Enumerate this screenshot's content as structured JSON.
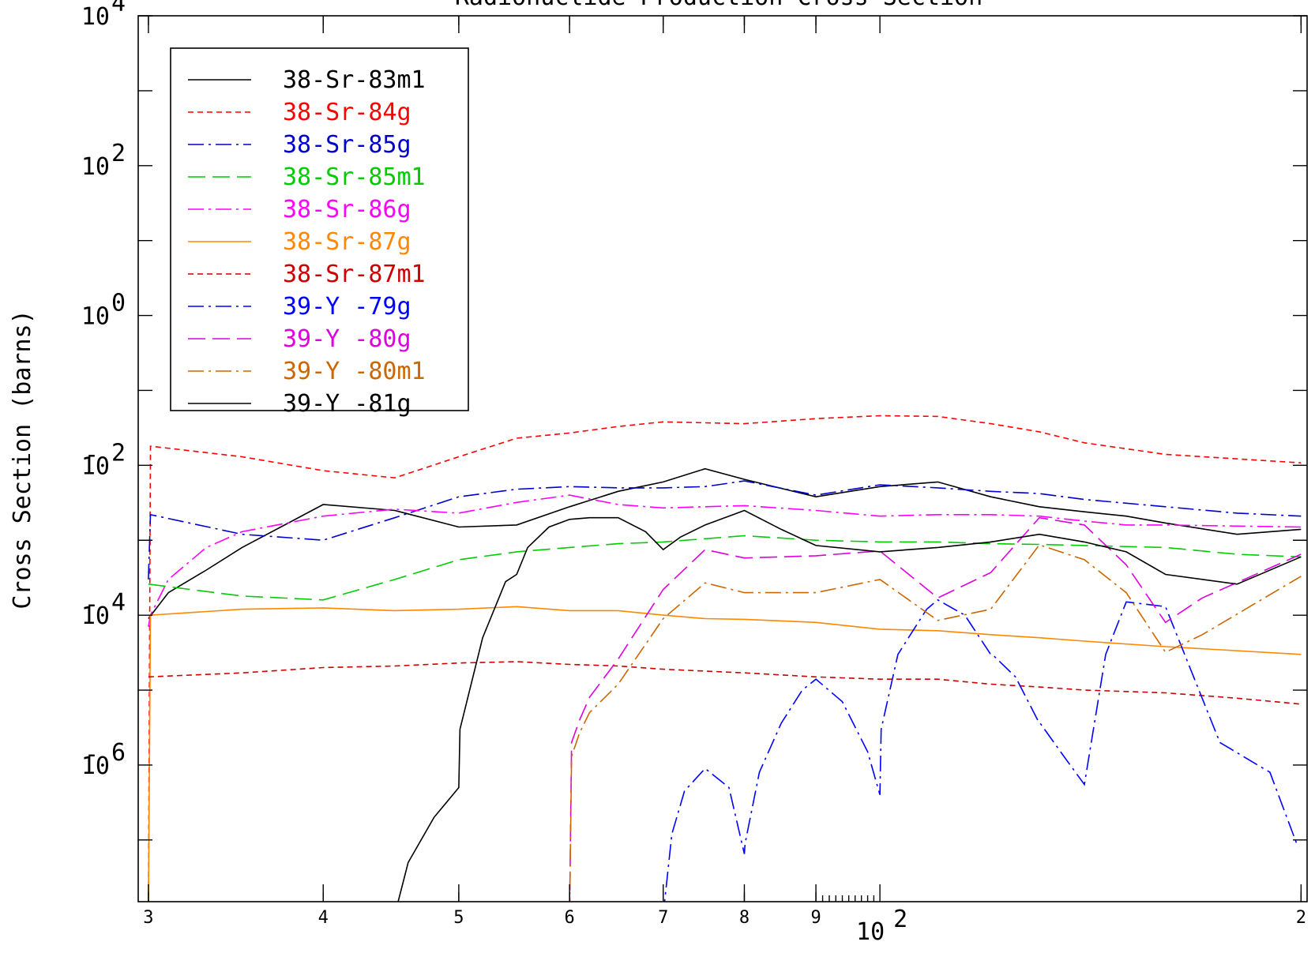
{
  "chart_data": {
    "type": "line",
    "title": "Radionuclide Production Cross Section",
    "xlabel": "",
    "ylabel": "Cross Section (barns)",
    "x_scale": "log",
    "y_scale": "log",
    "xlim": [
      29.5,
      202
    ],
    "ylim": [
      1.5e-08,
      10000
    ],
    "x_ticks": [
      {
        "value": 30,
        "label": "3"
      },
      {
        "value": 40,
        "label": "4"
      },
      {
        "value": 50,
        "label": "5"
      },
      {
        "value": 60,
        "label": "6"
      },
      {
        "value": 70,
        "label": "7"
      },
      {
        "value": 80,
        "label": "8"
      },
      {
        "value": 90,
        "label": "9"
      },
      {
        "value": 200,
        "label": "2"
      }
    ],
    "x_decade_label": {
      "value": 100,
      "base": "10",
      "exp": "2"
    },
    "y_ticks": [
      {
        "value": 10000,
        "base": "10",
        "exp": "4"
      },
      {
        "value": 100,
        "base": "10",
        "exp": "2"
      },
      {
        "value": 1,
        "base": "10",
        "exp": "0"
      },
      {
        "value": 0.01,
        "base": "10",
        "exp": "-2"
      },
      {
        "value": 0.0001,
        "base": "10",
        "exp": "-4"
      },
      {
        "value": 1e-06,
        "base": "10",
        "exp": "-6"
      }
    ],
    "grid": false,
    "legend_position": "top-left",
    "series": [
      {
        "name": "38-Sr-83m1",
        "color": "#000000",
        "dash": "solid",
        "x": [
          30,
          31,
          33,
          35,
          40,
          45,
          50,
          55,
          60,
          65,
          70,
          75,
          80,
          90,
          100,
          110,
          120,
          130,
          140,
          150,
          160,
          180,
          200
        ],
        "y": [
          9e-05,
          0.0002,
          0.0004,
          0.0008,
          0.003,
          0.0025,
          0.0015,
          0.0016,
          0.0028,
          0.0045,
          0.006,
          0.009,
          0.0065,
          0.0038,
          0.0052,
          0.006,
          0.0038,
          0.0028,
          0.0024,
          0.0021,
          0.0017,
          0.0012,
          0.0014
        ]
      },
      {
        "name": "38-Sr-84g",
        "color": "#ff0000",
        "dash": "short",
        "x": [
          30,
          30.1,
          35,
          40,
          45,
          50,
          55,
          60,
          65,
          70,
          80,
          90,
          100,
          110,
          120,
          130,
          140,
          160,
          200
        ],
        "y": [
          1e-08,
          0.018,
          0.013,
          0.0085,
          0.0068,
          0.013,
          0.023,
          0.027,
          0.033,
          0.038,
          0.036,
          0.042,
          0.046,
          0.045,
          0.036,
          0.028,
          0.02,
          0.014,
          0.0108
        ]
      },
      {
        "name": "38-Sr-85g",
        "color": "#0000cc",
        "dash": "dashdot",
        "x": [
          30,
          30.1,
          35,
          40,
          45,
          50,
          55,
          60,
          65,
          70,
          75,
          80,
          90,
          100,
          110,
          120,
          130,
          140,
          160,
          180,
          200
        ],
        "y": [
          0.0003,
          0.0022,
          0.0012,
          0.001,
          0.002,
          0.0038,
          0.0048,
          0.0052,
          0.005,
          0.005,
          0.0052,
          0.0062,
          0.004,
          0.0055,
          0.005,
          0.0045,
          0.0042,
          0.0035,
          0.0028,
          0.0023,
          0.0021
        ]
      },
      {
        "name": "38-Sr-85m1",
        "color": "#00cc00",
        "dash": "longdash",
        "x": [
          30,
          35,
          40,
          45,
          50,
          55,
          60,
          65,
          70,
          80,
          90,
          100,
          110,
          120,
          130,
          140,
          160,
          180,
          200
        ],
        "y": [
          0.00026,
          0.00018,
          0.00016,
          0.0003,
          0.00055,
          0.0007,
          0.0008,
          0.0009,
          0.00095,
          0.00115,
          0.001,
          0.00095,
          0.00095,
          0.0009,
          0.00088,
          0.00085,
          0.0008,
          0.00065,
          0.0006
        ]
      },
      {
        "name": "38-Sr-86g",
        "color": "#ff00ff",
        "dash": "dashdot",
        "x": [
          30,
          30.1,
          31,
          33,
          35,
          40,
          45,
          50,
          55,
          60,
          65,
          70,
          75,
          80,
          90,
          100,
          110,
          120,
          130,
          140,
          150,
          160,
          200
        ],
        "y": [
          7e-05,
          0.0001,
          0.0003,
          0.0008,
          0.0013,
          0.0021,
          0.0026,
          0.0023,
          0.0032,
          0.004,
          0.003,
          0.0027,
          0.0028,
          0.0029,
          0.0025,
          0.0021,
          0.0022,
          0.0022,
          0.0021,
          0.0018,
          0.0016,
          0.0016,
          0.0015
        ]
      },
      {
        "name": "38-Sr-87g",
        "color": "#ff8800",
        "dash": "solid",
        "x": [
          30,
          30.1,
          35,
          40,
          45,
          50,
          55,
          60,
          65,
          70,
          75,
          80,
          90,
          100,
          110,
          120,
          130,
          140,
          160,
          200
        ],
        "y": [
          1e-08,
          0.0001,
          0.00012,
          0.000125,
          0.000115,
          0.00012,
          0.00013,
          0.000115,
          0.000115,
          0.0001,
          9e-05,
          8.8e-05,
          8e-05,
          6.5e-05,
          6.2e-05,
          5.5e-05,
          5e-05,
          4.5e-05,
          3.8e-05,
          3e-05
        ]
      },
      {
        "name": "38-Sr-87m1",
        "color": "#cc0000",
        "dash": "short",
        "x": [
          30,
          35,
          40,
          45,
          50,
          55,
          60,
          65,
          70,
          80,
          90,
          100,
          110,
          120,
          130,
          140,
          160,
          180,
          200
        ],
        "y": [
          1.5e-05,
          1.7e-05,
          2e-05,
          2.1e-05,
          2.3e-05,
          2.4e-05,
          2.2e-05,
          2.1e-05,
          1.9e-05,
          1.7e-05,
          1.5e-05,
          1.4e-05,
          1.4e-05,
          1.2e-05,
          1.1e-05,
          1e-05,
          9.2e-06,
          7.8e-06,
          6.5e-06
        ]
      },
      {
        "name": "39-Y -79g",
        "color": "#0000ff",
        "dash": "dashdot",
        "x": [
          70,
          71,
          72.5,
          75,
          78,
          80,
          80.1,
          82,
          85,
          88,
          90,
          94,
          98,
          100,
          100.2,
          103,
          108,
          110,
          115,
          120,
          120.3,
          125,
          130,
          130.2,
          135,
          140,
          145,
          150,
          150.2,
          160,
          175,
          190,
          199
        ],
        "y": [
          1e-08,
          1.2e-07,
          4.5e-07,
          9e-07,
          5e-07,
          6.5e-08,
          9e-08,
          8e-07,
          3.6e-06,
          1e-05,
          1.4e-05,
          7e-06,
          1.5e-06,
          4e-07,
          3e-06,
          3e-05,
          0.00012,
          0.00016,
          0.0001,
          3e-05,
          3e-05,
          1.5e-05,
          3.6e-06,
          3.6e-06,
          1.4e-06,
          5.5e-07,
          3e-05,
          0.00015,
          0.00015,
          0.00013,
          2e-06,
          8e-07,
          8e-08
        ]
      },
      {
        "name": "39-Y -80g",
        "color": "#dd00dd",
        "dash": "longdash",
        "x": [
          60,
          60.2,
          61,
          62,
          65,
          70,
          75,
          80,
          90,
          100,
          110,
          120,
          130,
          140,
          150,
          160,
          170,
          200
        ],
        "y": [
          1e-08,
          2e-06,
          4e-06,
          8e-06,
          2.6e-05,
          0.00022,
          0.00075,
          0.00058,
          0.00062,
          0.00072,
          0.00017,
          0.00037,
          0.002,
          0.0016,
          0.00047,
          8e-05,
          0.00017,
          0.00065
        ]
      },
      {
        "name": "39-Y -80m1",
        "color": "#cc6600",
        "dash": "dashdot",
        "x": [
          60,
          60.2,
          61,
          62,
          65,
          70,
          75,
          80,
          90,
          100,
          110,
          120,
          130,
          140,
          150,
          160,
          170,
          200
        ],
        "y": [
          1e-08,
          1.3e-06,
          2.7e-06,
          5e-06,
          1.2e-05,
          9e-05,
          0.00027,
          0.0002,
          0.0002,
          0.0003,
          8.5e-05,
          0.00012,
          0.00087,
          0.00055,
          0.0002,
          3.2e-05,
          5.5e-05,
          0.00033
        ]
      },
      {
        "name": "39-Y -81g",
        "color": "#000000",
        "dash": "solid",
        "x": [
          45,
          46,
          48,
          50,
          50.1,
          52,
          54,
          55,
          56,
          58,
          60,
          62,
          65,
          68,
          70,
          72,
          75,
          78,
          80,
          85,
          90,
          100,
          110,
          120,
          130,
          140,
          150,
          160,
          180,
          200
        ],
        "y": [
          1e-08,
          5e-08,
          2e-07,
          5e-07,
          3e-06,
          5e-05,
          0.00028,
          0.00035,
          0.0008,
          0.0015,
          0.0019,
          0.002,
          0.002,
          0.0013,
          0.00075,
          0.0011,
          0.0016,
          0.0021,
          0.0025,
          0.0014,
          0.00085,
          0.0007,
          0.0008,
          0.00095,
          0.0012,
          0.00095,
          0.0007,
          0.00035,
          0.00026,
          0.0006
        ]
      }
    ]
  }
}
